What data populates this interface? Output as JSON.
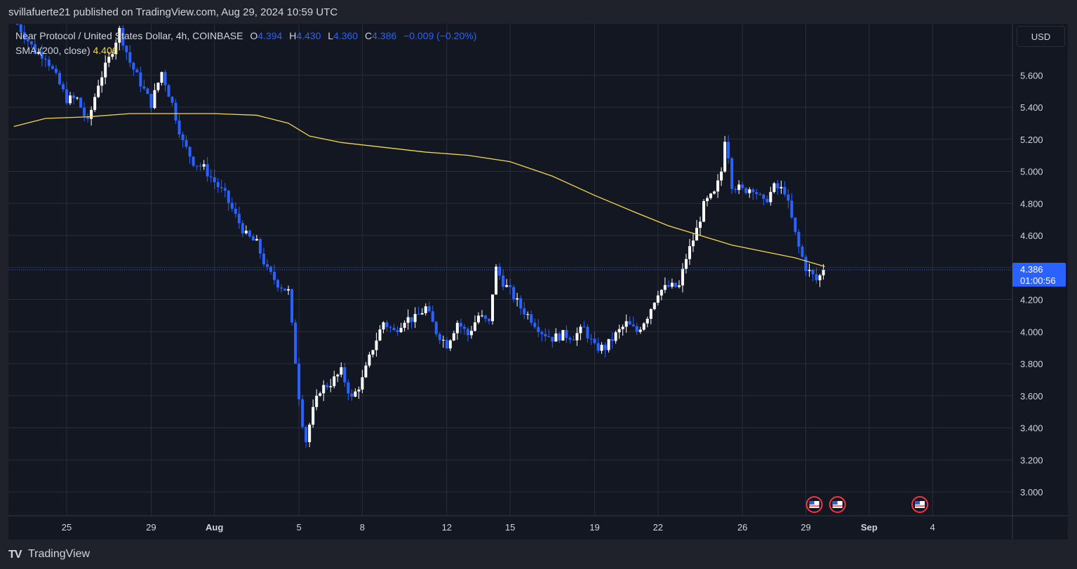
{
  "header": {
    "published_text": "svillafuerte21 published on TradingView.com, Aug 29, 2024 10:59 UTC"
  },
  "legend": {
    "symbol": "Near Protocol / United States Dollar, 4h, COINBASE",
    "o_label": "O",
    "o_value": "4.394",
    "h_label": "H",
    "h_value": "4.430",
    "l_label": "L",
    "l_value": "4.360",
    "c_label": "C",
    "c_value": "4.386",
    "change": "−0.009 (−0.20%)",
    "sma_label": "SMA (200, close)",
    "sma_value": "4.406"
  },
  "price_scale": {
    "currency": "USD",
    "last_price": "4.386",
    "countdown": "01:00:56"
  },
  "footer": {
    "brand": "TradingView",
    "logo": "TV"
  },
  "colors": {
    "background": "#131722",
    "grid": "#2a2e39",
    "up_candle": "#ffffff",
    "down_candle": "#2962ff",
    "sma_line": "#f5d949",
    "price_badge": "#2962ff",
    "text": "#d1d4dc"
  },
  "chart_data": {
    "type": "candlestick",
    "title": "Near Protocol / United States Dollar, 4h, COINBASE",
    "y_ticks": [
      "3.000",
      "3.200",
      "3.400",
      "3.600",
      "3.800",
      "4.000",
      "4.200",
      "4.400",
      "4.600",
      "4.800",
      "5.000",
      "5.200",
      "5.400",
      "5.600"
    ],
    "x_ticks": [
      {
        "label": "25",
        "day": -7
      },
      {
        "label": "29",
        "day": -3
      },
      {
        "label": "Aug",
        "day": 0
      },
      {
        "label": "5",
        "day": 4
      },
      {
        "label": "8",
        "day": 7
      },
      {
        "label": "12",
        "day": 11
      },
      {
        "label": "15",
        "day": 14
      },
      {
        "label": "19",
        "day": 18
      },
      {
        "label": "22",
        "day": 21
      },
      {
        "label": "26",
        "day": 25
      },
      {
        "label": "29",
        "day": 28
      },
      {
        "label": "Sep",
        "day": 31
      },
      {
        "label": "4",
        "day": 34
      }
    ],
    "x_unit": "days from Aug 1, 2024",
    "ylim": [
      2.88,
      5.88
    ],
    "xlim": [
      -9.5,
      38.1
    ],
    "last_price": 4.386,
    "event_markers": [
      {
        "day": 28.4,
        "icon": "us-flag-icon"
      },
      {
        "day": 29.5,
        "icon": "us-flag-icon"
      },
      {
        "day": 33.4,
        "icon": "us-flag-icon"
      }
    ],
    "price_path": [
      [
        -9.5,
        5.95
      ],
      [
        -8.5,
        5.75
      ],
      [
        -8.0,
        5.72
      ],
      [
        -7.0,
        5.45
      ],
      [
        -6.5,
        5.45
      ],
      [
        -6.0,
        5.3
      ],
      [
        -5.5,
        5.55
      ],
      [
        -5.0,
        5.7
      ],
      [
        -4.5,
        5.88
      ],
      [
        -4.0,
        5.68
      ],
      [
        -3.0,
        5.42
      ],
      [
        -2.5,
        5.62
      ],
      [
        -2.0,
        5.42
      ],
      [
        -1.5,
        5.18
      ],
      [
        -1.0,
        5.06
      ],
      [
        -0.5,
        5.02
      ],
      [
        0.5,
        4.85
      ],
      [
        1.0,
        4.72
      ],
      [
        1.5,
        4.6
      ],
      [
        2.0,
        4.55
      ],
      [
        2.5,
        4.38
      ],
      [
        3.0,
        4.3
      ],
      [
        3.5,
        4.25
      ],
      [
        4.0,
        3.6
      ],
      [
        4.3,
        3.3
      ],
      [
        4.6,
        3.48
      ],
      [
        5.0,
        3.64
      ],
      [
        5.5,
        3.68
      ],
      [
        6.0,
        3.75
      ],
      [
        6.5,
        3.58
      ],
      [
        7.0,
        3.7
      ],
      [
        7.5,
        3.9
      ],
      [
        8.0,
        4.06
      ],
      [
        8.5,
        4.0
      ],
      [
        9.0,
        4.08
      ],
      [
        9.5,
        4.08
      ],
      [
        10.0,
        4.15
      ],
      [
        10.5,
        4.0
      ],
      [
        11.0,
        3.92
      ],
      [
        11.5,
        4.06
      ],
      [
        12.0,
        3.98
      ],
      [
        12.5,
        4.1
      ],
      [
        13.0,
        4.05
      ],
      [
        13.3,
        4.4
      ],
      [
        13.7,
        4.3
      ],
      [
        14.0,
        4.25
      ],
      [
        14.5,
        4.15
      ],
      [
        15.0,
        4.08
      ],
      [
        15.5,
        4.0
      ],
      [
        16.0,
        3.96
      ],
      [
        16.5,
        3.98
      ],
      [
        17.0,
        3.97
      ],
      [
        17.5,
        4.02
      ],
      [
        18.0,
        3.9
      ],
      [
        18.5,
        3.9
      ],
      [
        19.0,
        3.98
      ],
      [
        19.5,
        4.05
      ],
      [
        20.0,
        4.0
      ],
      [
        20.5,
        4.1
      ],
      [
        21.0,
        4.25
      ],
      [
        21.5,
        4.28
      ],
      [
        22.0,
        4.28
      ],
      [
        22.3,
        4.45
      ],
      [
        22.8,
        4.62
      ],
      [
        23.2,
        4.8
      ],
      [
        23.7,
        4.86
      ],
      [
        24.0,
        5.0
      ],
      [
        24.2,
        5.25
      ],
      [
        24.5,
        4.92
      ],
      [
        25.0,
        4.88
      ],
      [
        25.5,
        4.9
      ],
      [
        26.0,
        4.8
      ],
      [
        26.5,
        4.9
      ],
      [
        27.0,
        4.88
      ],
      [
        27.3,
        4.72
      ],
      [
        27.6,
        4.55
      ],
      [
        28.0,
        4.4
      ],
      [
        28.5,
        4.32
      ],
      [
        28.9,
        4.386
      ]
    ],
    "sma_path": [
      [
        -9.5,
        5.28
      ],
      [
        -8.0,
        5.33
      ],
      [
        -6.0,
        5.34
      ],
      [
        -4.0,
        5.36
      ],
      [
        -2.0,
        5.36
      ],
      [
        0.0,
        5.36
      ],
      [
        2.0,
        5.35
      ],
      [
        3.5,
        5.3
      ],
      [
        4.5,
        5.22
      ],
      [
        6.0,
        5.18
      ],
      [
        8.0,
        5.15
      ],
      [
        10.0,
        5.12
      ],
      [
        12.0,
        5.1
      ],
      [
        14.0,
        5.06
      ],
      [
        16.0,
        4.97
      ],
      [
        18.0,
        4.85
      ],
      [
        20.0,
        4.74
      ],
      [
        21.5,
        4.66
      ],
      [
        23.0,
        4.6
      ],
      [
        24.5,
        4.54
      ],
      [
        26.0,
        4.5
      ],
      [
        27.5,
        4.46
      ],
      [
        28.9,
        4.406
      ]
    ]
  }
}
